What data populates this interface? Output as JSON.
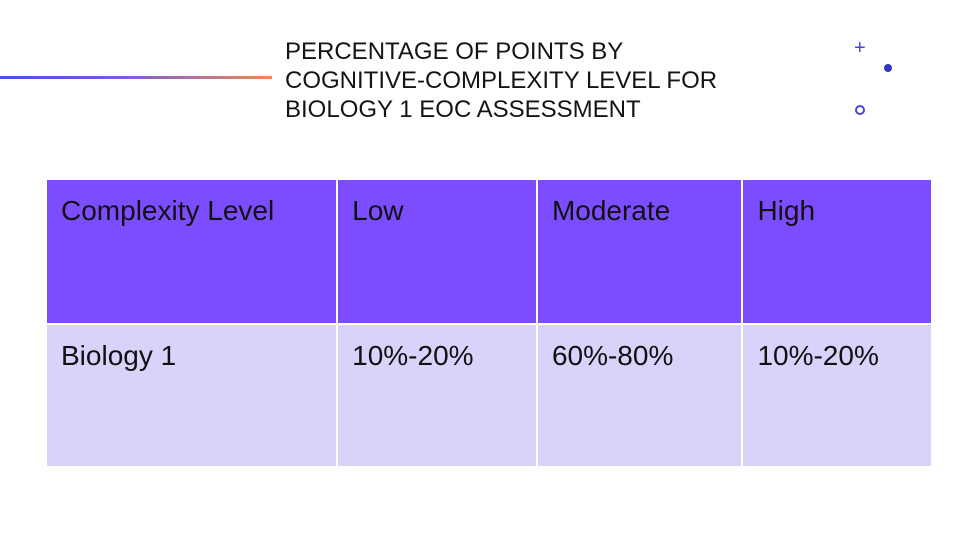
{
  "title": {
    "line1": "PERCENTAGE OF POINTS BY",
    "line2": "COGNITIVE-COMPLEXITY LEVEL FOR",
    "line3": "BIOLOGY 1 EOC ASSESSMENT"
  },
  "decorations": {
    "plus_icon": "plus-icon",
    "dot_icon": "dot-icon",
    "ring_icon": "ring-icon"
  },
  "table": {
    "header": [
      "Complexity Level",
      "Low",
      "Moderate",
      "High"
    ],
    "rows": [
      [
        "Biology 1",
        "10%-20%",
        "60%-80%",
        "10%-20%"
      ]
    ]
  },
  "colors": {
    "header_fill": "#7c4dff",
    "body_fill": "#d9d2fb",
    "accent_start": "#4a4ee8",
    "accent_end": "#f08a4a"
  }
}
